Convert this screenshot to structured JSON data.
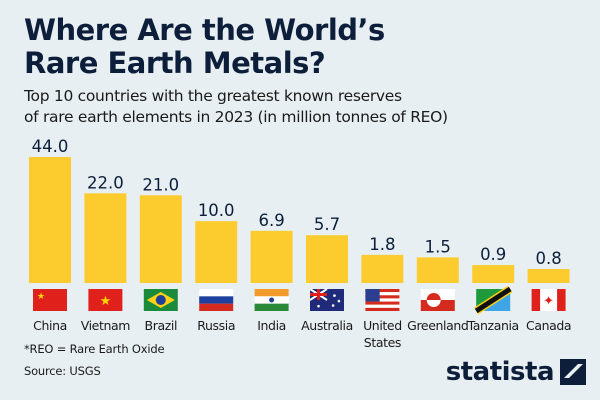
{
  "header": {
    "title_line1": "Where Are the World’s",
    "title_line2": "Rare Earth Metals?",
    "subtitle_line1": "Top 10 countries with the greatest known reserves",
    "subtitle_line2": "of rare earth elements in 2023 (in million tonnes of REO)"
  },
  "footer": {
    "footnote": "*REO = Rare Earth Oxide",
    "source": "Source: USGS",
    "brand": "statista"
  },
  "colors": {
    "bar": "#fccc2f",
    "text": "#0c1e3a",
    "background": "#e8eff3"
  },
  "chart_data": {
    "type": "bar",
    "title": "Where Are the World’s Rare Earth Metals?",
    "subtitle": "Top 10 countries with the greatest known reserves of rare earth elements in 2023 (in million tonnes of REO)",
    "categories": [
      "China",
      "Vietnam",
      "Brazil",
      "Russia",
      "India",
      "Australia",
      "United States",
      "Greenland",
      "Tanzania",
      "Canada"
    ],
    "label_lines": [
      [
        "China"
      ],
      [
        "Vietnam"
      ],
      [
        "Brazil"
      ],
      [
        "Russia"
      ],
      [
        "India"
      ],
      [
        "Australia"
      ],
      [
        "United",
        "States"
      ],
      [
        "Greenland"
      ],
      [
        "Tanzania"
      ],
      [
        "Canada"
      ]
    ],
    "flags": [
      "china-flag",
      "vietnam-flag",
      "brazil-flag",
      "russia-flag",
      "india-flag",
      "australia-flag",
      "united-states-flag",
      "greenland-flag",
      "tanzania-flag",
      "canada-flag"
    ],
    "values": [
      44.0,
      22.0,
      21.0,
      10.0,
      6.9,
      5.7,
      1.8,
      1.5,
      0.9,
      0.8
    ],
    "value_labels": [
      "44.0",
      "22.0",
      "21.0",
      "10.0",
      "6.9",
      "5.7",
      "1.8",
      "1.5",
      "0.9",
      "0.8"
    ],
    "xlabel": "",
    "ylabel": "million tonnes of REO",
    "grid": false,
    "legend": "none"
  }
}
